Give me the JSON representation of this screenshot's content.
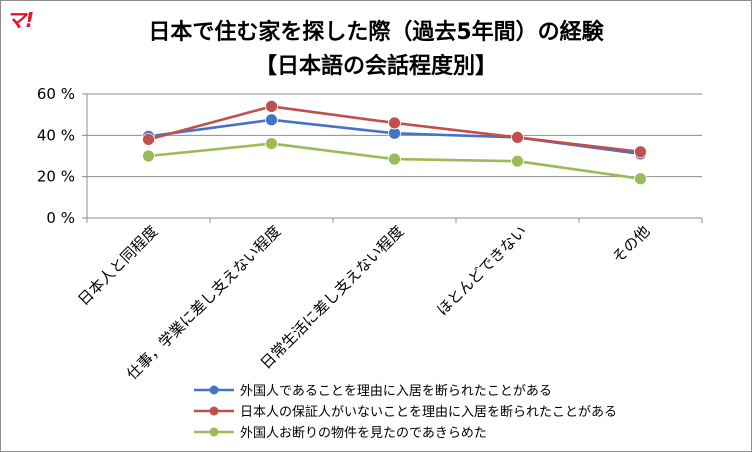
{
  "logo": {
    "text": "マ!",
    "color": "#e8102a"
  },
  "title_line1": "日本で住む家を探した際（過去5年間）の経験",
  "title_line2": "【日本語の会話程度別】",
  "chart_data": {
    "type": "line",
    "title": "日本で住む家を探した際（過去5年間）の経験 【日本語の会話程度別】",
    "categories": [
      "日本人と同程度",
      "仕事，学業に差し支えない程度",
      "日常生活に差し支えない程度",
      "ほとんどできない",
      "その他"
    ],
    "ylim": [
      0,
      60
    ],
    "yticks": [
      0,
      20,
      40,
      60
    ],
    "ytick_labels": [
      "0 %",
      "20 %",
      "40 %",
      "60 %"
    ],
    "grid": true,
    "legend_position": "bottom-right",
    "series": [
      {
        "name": "外国人であることを理由に入居を断られたことがある",
        "color": "#4472c4",
        "values": [
          39.5,
          47.5,
          41,
          39,
          31
        ]
      },
      {
        "name": "日本人の保証人がいないことを理由に入居を断られたことがある",
        "color": "#c0504d",
        "values": [
          38,
          54,
          46,
          39,
          32
        ]
      },
      {
        "name": "外国人お断りの物件を見たのであきらめた",
        "color": "#9bbb59",
        "values": [
          30,
          36,
          28.5,
          27.5,
          19
        ]
      }
    ]
  }
}
